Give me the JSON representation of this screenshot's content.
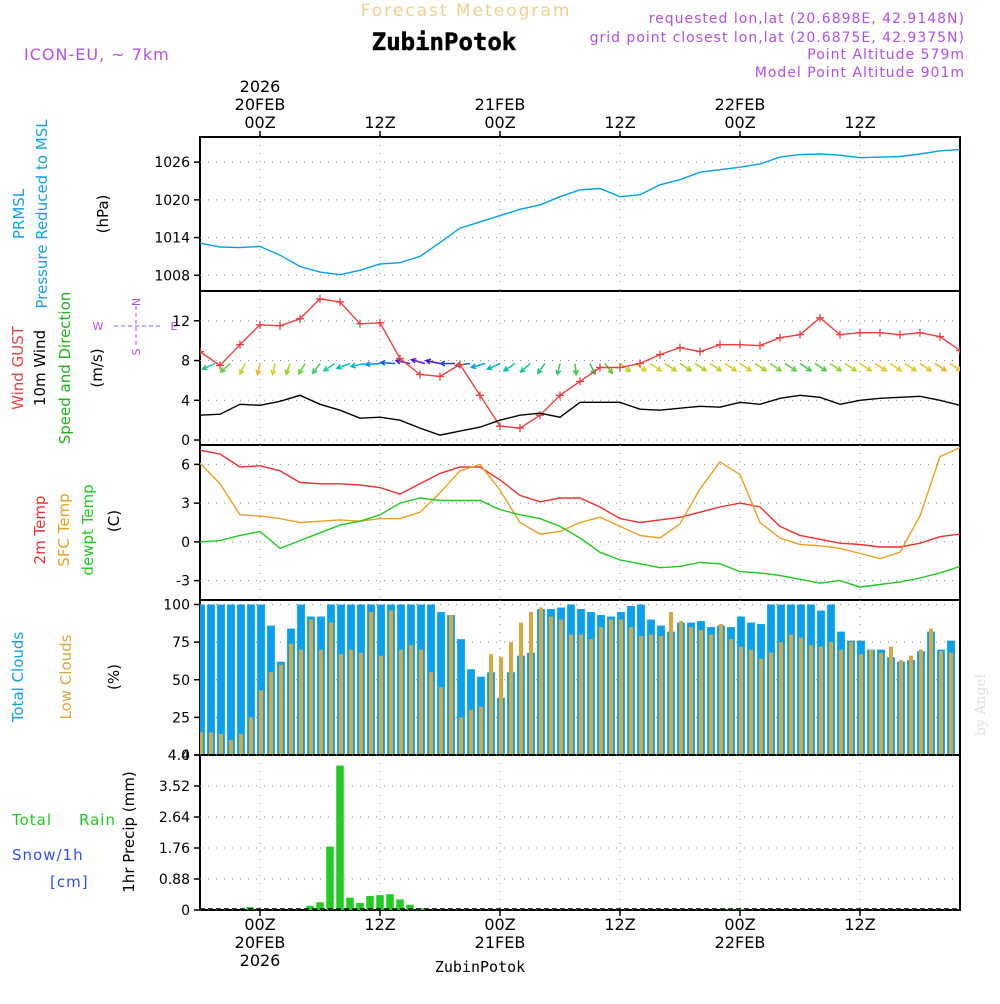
{
  "header": {
    "forecast_title": "Forecast Meteogram",
    "location": "ZubinPotok",
    "model": "ICON-EU, ~ 7km",
    "requested": "requested lon,lat (20.6898E, 42.9148N)",
    "closest": "grid point closest lon,lat (20.6875E, 42.9375N)",
    "point_alt": "Point Altitude 579m",
    "model_alt": "Model Point Altitude 901m"
  },
  "time_axis": {
    "top_labels": [
      {
        "t": 6,
        "lines": [
          "2026",
          "20FEB",
          "00Z"
        ]
      },
      {
        "t": 18,
        "lines": [
          "12Z"
        ]
      },
      {
        "t": 30,
        "lines": [
          "21FEB",
          "00Z"
        ]
      },
      {
        "t": 42,
        "lines": [
          "12Z"
        ]
      },
      {
        "t": 54,
        "lines": [
          "22FEB",
          "00Z"
        ]
      },
      {
        "t": 66,
        "lines": [
          "12Z"
        ]
      }
    ],
    "bottom_labels": [
      {
        "t": 6,
        "lines": [
          "00Z",
          "20FEB",
          "2026"
        ]
      },
      {
        "t": 18,
        "lines": [
          "12Z"
        ]
      },
      {
        "t": 30,
        "lines": [
          "00Z",
          "21FEB"
        ]
      },
      {
        "t": 42,
        "lines": [
          "12Z"
        ]
      },
      {
        "t": 54,
        "lines": [
          "00Z",
          "22FEB"
        ]
      },
      {
        "t": 66,
        "lines": [
          "12Z"
        ]
      }
    ],
    "footer_location": "ZubinPotok",
    "credit": "by Angel"
  },
  "chart_data": [
    {
      "type": "line",
      "panel": "pressure",
      "labels": [
        "PRMSL",
        "Pressure Reduced to MSL"
      ],
      "unit": "(hPa)",
      "ylim": [
        1005.5,
        1030
      ],
      "yticks": [
        1008,
        1014,
        1020,
        1026
      ],
      "x": [
        0,
        2,
        4,
        6,
        8,
        10,
        12,
        14,
        16,
        18,
        20,
        22,
        24,
        26,
        28,
        30,
        32,
        34,
        36,
        38,
        40,
        42,
        44,
        46,
        48,
        50,
        52,
        54,
        56,
        58,
        60,
        62,
        64,
        66,
        68,
        70,
        72,
        74,
        76
      ],
      "series": [
        {
          "name": "PRMSL",
          "color": "#00a0e6",
          "values": [
            1013.1,
            1012.5,
            1012.4,
            1012.6,
            1011.2,
            1009.4,
            1008.5,
            1008.1,
            1008.8,
            1009.8,
            1010.0,
            1011.0,
            1013.2,
            1015.5,
            1016.5,
            1017.5,
            1018.5,
            1019.2,
            1020.5,
            1021.6,
            1021.8,
            1020.5,
            1020.8,
            1022.4,
            1023.2,
            1024.4,
            1024.8,
            1025.2,
            1025.7,
            1026.8,
            1027.2,
            1027.3,
            1027.1,
            1026.7,
            1026.8,
            1026.9,
            1027.3,
            1027.8,
            1028.0
          ]
        }
      ]
    },
    {
      "type": "line",
      "panel": "wind",
      "labels": [
        "Wind GUST",
        "10m Wind",
        "Speed and Direction"
      ],
      "unit": "(m/s)",
      "compass": [
        "N",
        "W",
        "E",
        "S"
      ],
      "ylim": [
        -0.5,
        15
      ],
      "yticks": [
        0,
        4,
        8,
        12
      ],
      "x": [
        0,
        2,
        4,
        6,
        8,
        10,
        12,
        14,
        16,
        18,
        20,
        22,
        24,
        26,
        28,
        30,
        32,
        34,
        36,
        38,
        40,
        42,
        44,
        46,
        48,
        50,
        52,
        54,
        56,
        58,
        60,
        62,
        64,
        66,
        68,
        70,
        72,
        74,
        76
      ],
      "series": [
        {
          "name": "Wind GUST",
          "color": "#e84040",
          "marker": "+",
          "values": [
            8.9,
            7.5,
            9.6,
            11.6,
            11.5,
            12.2,
            14.2,
            13.9,
            11.7,
            11.8,
            8.2,
            6.6,
            6.4,
            7.6,
            4.5,
            1.4,
            1.2,
            2.5,
            4.5,
            5.9,
            7.3,
            7.3,
            7.7,
            8.6,
            9.3,
            8.9,
            9.6,
            9.6,
            9.5,
            10.3,
            10.6,
            12.3,
            10.6,
            10.8,
            10.8,
            10.6,
            10.8,
            10.4,
            9.0
          ]
        },
        {
          "name": "10m Wind",
          "color": "#000000",
          "values": [
            2.5,
            2.6,
            3.6,
            3.5,
            3.9,
            4.5,
            3.6,
            3.0,
            2.2,
            2.3,
            2.0,
            1.2,
            0.5,
            0.9,
            1.3,
            2.0,
            2.5,
            2.7,
            2.3,
            3.8,
            3.8,
            3.8,
            3.1,
            3.0,
            3.2,
            3.4,
            3.3,
            3.8,
            3.6,
            4.2,
            4.5,
            4.3,
            3.6,
            4.0,
            4.2,
            4.3,
            4.4,
            4.0,
            3.5
          ]
        }
      ],
      "direction_arrows": [
        {
          "t": 0,
          "angle": 150,
          "color": "#00c8a0"
        },
        {
          "t": 1.5,
          "angle": 150,
          "color": "#20c880"
        },
        {
          "t": 3,
          "angle": 130,
          "color": "#60d040"
        },
        {
          "t": 4.5,
          "angle": 110,
          "color": "#c8d020"
        },
        {
          "t": 6,
          "angle": 100,
          "color": "#f0b020"
        },
        {
          "t": 7.5,
          "angle": 100,
          "color": "#d0d020"
        },
        {
          "t": 9,
          "angle": 105,
          "color": "#a0d020"
        },
        {
          "t": 10.5,
          "angle": 115,
          "color": "#70d040"
        },
        {
          "t": 12,
          "angle": 120,
          "color": "#40c860"
        },
        {
          "t": 13.5,
          "angle": 140,
          "color": "#20c8a0"
        },
        {
          "t": 15,
          "angle": 155,
          "color": "#00c0c8"
        },
        {
          "t": 16.5,
          "angle": 165,
          "color": "#00b8e0"
        },
        {
          "t": 18,
          "angle": 175,
          "color": "#0090e8"
        },
        {
          "t": 19.5,
          "angle": 185,
          "color": "#0060e0"
        },
        {
          "t": 21,
          "angle": 195,
          "color": "#3030e0"
        },
        {
          "t": 22.5,
          "angle": 200,
          "color": "#6010d0"
        },
        {
          "t": 24,
          "angle": 195,
          "color": "#4010c8"
        },
        {
          "t": 25.5,
          "angle": 180,
          "color": "#2040d8"
        },
        {
          "t": 27,
          "angle": 170,
          "color": "#0070e0"
        },
        {
          "t": 28.5,
          "angle": 160,
          "color": "#00a0e0"
        },
        {
          "t": 30,
          "angle": 150,
          "color": "#00b8c8"
        },
        {
          "t": 31.5,
          "angle": 140,
          "color": "#00c0b0"
        },
        {
          "t": 33,
          "angle": 130,
          "color": "#10c890"
        },
        {
          "t": 34.5,
          "angle": 120,
          "color": "#20c870"
        },
        {
          "t": 36,
          "angle": 100,
          "color": "#30c860"
        },
        {
          "t": 37.5,
          "angle": 85,
          "color": "#40c840"
        },
        {
          "t": 39,
          "angle": 70,
          "color": "#30c040"
        },
        {
          "t": 40.5,
          "angle": 60,
          "color": "#60c830"
        },
        {
          "t": 42,
          "angle": 45,
          "color": "#c0d020"
        },
        {
          "t": 43.5,
          "angle": 40,
          "color": "#e0d020"
        },
        {
          "t": 45,
          "angle": 40,
          "color": "#d8d020"
        },
        {
          "t": 46.5,
          "angle": 40,
          "color": "#c0d020"
        },
        {
          "t": 48,
          "angle": 40,
          "color": "#a0d020"
        },
        {
          "t": 49.5,
          "angle": 40,
          "color": "#b0d020"
        },
        {
          "t": 51,
          "angle": 40,
          "color": "#c8d020"
        },
        {
          "t": 52.5,
          "angle": 40,
          "color": "#e0c820"
        },
        {
          "t": 54,
          "angle": 40,
          "color": "#d0d020"
        },
        {
          "t": 55.5,
          "angle": 40,
          "color": "#a8d020"
        },
        {
          "t": 57,
          "angle": 40,
          "color": "#80d030"
        },
        {
          "t": 58.5,
          "angle": 40,
          "color": "#60c840"
        },
        {
          "t": 60,
          "angle": 40,
          "color": "#40c850"
        },
        {
          "t": 61.5,
          "angle": 40,
          "color": "#50c840"
        },
        {
          "t": 63,
          "angle": 40,
          "color": "#90d030"
        },
        {
          "t": 64.5,
          "angle": 40,
          "color": "#c0d020"
        },
        {
          "t": 66,
          "angle": 40,
          "color": "#e0d020"
        },
        {
          "t": 67.5,
          "angle": 40,
          "color": "#f0c020"
        },
        {
          "t": 69,
          "angle": 40,
          "color": "#e0d020"
        },
        {
          "t": 70.5,
          "angle": 40,
          "color": "#d0d020"
        },
        {
          "t": 72,
          "angle": 40,
          "color": "#e8c020"
        },
        {
          "t": 73.5,
          "angle": 40,
          "color": "#f0b020"
        },
        {
          "t": 75,
          "angle": 40,
          "color": "#f0c020"
        }
      ]
    },
    {
      "type": "line",
      "panel": "temperature",
      "labels": [
        "2m Temp",
        "SFC Temp",
        "dewpt Temp"
      ],
      "unit": "(C)",
      "ylim": [
        -4.5,
        7.5
      ],
      "yticks": [
        -3,
        0,
        3,
        6
      ],
      "x": [
        0,
        2,
        4,
        6,
        8,
        10,
        12,
        14,
        16,
        18,
        20,
        22,
        24,
        26,
        28,
        30,
        32,
        34,
        36,
        38,
        40,
        42,
        44,
        46,
        48,
        50,
        52,
        54,
        56,
        58,
        60,
        62,
        64,
        66,
        68,
        70,
        72,
        74,
        76
      ],
      "series": [
        {
          "name": "2m Temp",
          "color": "#e83030",
          "values": [
            7.1,
            6.8,
            5.8,
            5.9,
            5.5,
            4.6,
            4.5,
            4.5,
            4.4,
            4.2,
            3.7,
            4.5,
            5.3,
            5.8,
            5.8,
            4.8,
            3.6,
            3.1,
            3.4,
            3.4,
            2.7,
            1.8,
            1.5,
            1.7,
            1.9,
            2.3,
            2.7,
            3.0,
            2.7,
            1.2,
            0.5,
            0.2,
            -0.1,
            -0.2,
            -0.4,
            -0.4,
            -0.1,
            0.4,
            0.6
          ]
        },
        {
          "name": "SFC Temp",
          "color": "#e8a020",
          "values": [
            6.1,
            4.5,
            2.1,
            2.0,
            1.8,
            1.5,
            1.6,
            1.7,
            1.6,
            1.8,
            1.8,
            2.3,
            3.8,
            5.5,
            6.0,
            4.0,
            1.5,
            0.6,
            0.8,
            1.5,
            1.9,
            1.2,
            0.5,
            0.3,
            1.4,
            4.1,
            6.2,
            5.2,
            1.5,
            0.3,
            -0.2,
            -0.3,
            -0.5,
            -0.9,
            -1.3,
            -0.8,
            2.0,
            6.6,
            7.3
          ]
        },
        {
          "name": "dewpt Temp",
          "color": "#20c820",
          "values": [
            0.0,
            0.1,
            0.5,
            0.8,
            -0.5,
            0.1,
            0.7,
            1.3,
            1.6,
            2.1,
            3.0,
            3.4,
            3.2,
            3.2,
            3.2,
            2.5,
            2.1,
            1.8,
            1.2,
            0.3,
            -0.8,
            -1.4,
            -1.7,
            -2.0,
            -1.9,
            -1.6,
            -1.7,
            -2.3,
            -2.4,
            -2.6,
            -2.9,
            -3.2,
            -3.0,
            -3.5,
            -3.3,
            -3.1,
            -2.8,
            -2.4,
            -1.9
          ]
        }
      ]
    },
    {
      "type": "bar",
      "panel": "clouds",
      "labels": [
        "Total Clouds",
        "Low Clouds"
      ],
      "unit": "(%)",
      "ylim": [
        0,
        103
      ],
      "yticks": [
        0,
        25,
        50,
        75,
        100
      ],
      "x": [
        0,
        1,
        2,
        3,
        4,
        5,
        6,
        7,
        8,
        9,
        10,
        11,
        12,
        13,
        14,
        15,
        16,
        17,
        18,
        19,
        20,
        21,
        22,
        23,
        24,
        25,
        26,
        27,
        28,
        29,
        30,
        31,
        32,
        33,
        34,
        35,
        36,
        37,
        38,
        39,
        40,
        41,
        42,
        43,
        44,
        45,
        46,
        47,
        48,
        49,
        50,
        51,
        52,
        53,
        54,
        55,
        56,
        57,
        58,
        59,
        60,
        61,
        62,
        63,
        64,
        65,
        66,
        67,
        68,
        69,
        70,
        71,
        72,
        73,
        74,
        75
      ],
      "series": [
        {
          "name": "Total Clouds",
          "color": "#0aa0f0",
          "values": [
            100,
            100,
            100,
            100,
            100,
            100,
            100,
            86,
            62,
            84,
            100,
            92,
            92,
            100,
            100,
            100,
            100,
            100,
            100,
            100,
            100,
            100,
            100,
            100,
            95,
            93,
            77,
            57,
            52,
            55,
            38,
            55,
            66,
            68,
            97,
            97,
            98,
            100,
            97,
            95,
            93,
            92,
            95,
            99,
            100,
            90,
            86,
            82,
            88,
            88,
            89,
            85,
            86,
            85,
            92,
            88,
            87,
            100,
            100,
            100,
            100,
            100,
            96,
            100,
            82,
            76,
            76,
            70,
            70,
            65,
            62,
            63,
            69,
            82,
            70,
            76
          ]
        },
        {
          "name": "Low Clouds",
          "color": "#d8a840",
          "values": [
            15,
            15,
            14,
            10,
            14,
            25,
            43,
            55,
            60,
            74,
            70,
            90,
            70,
            88,
            67,
            70,
            68,
            95,
            66,
            96,
            70,
            73,
            70,
            55,
            45,
            93,
            25,
            30,
            32,
            67,
            65,
            75,
            88,
            95,
            98,
            92,
            90,
            80,
            80,
            77,
            85,
            90,
            90,
            85,
            79,
            80,
            79,
            95,
            89,
            85,
            83,
            80,
            87,
            77,
            72,
            70,
            64,
            68,
            75,
            80,
            78,
            73,
            72,
            75,
            70,
            75,
            67,
            70,
            68,
            72,
            63,
            66,
            70,
            84,
            69,
            68
          ]
        }
      ]
    },
    {
      "type": "bar",
      "panel": "precip",
      "labels": [
        "Total",
        "Rain",
        "Snow/1h",
        "[cm]"
      ],
      "unit": "1hr Precip (mm)",
      "ylim": [
        0,
        4.4
      ],
      "yticks": [
        0,
        0.88,
        1.76,
        2.64,
        3.52,
        4.4
      ],
      "ytick_labels": [
        "0",
        "0.88",
        "1.76",
        "2.64",
        "3.52",
        "4.4"
      ],
      "x": [
        5,
        11,
        12,
        13,
        14,
        15,
        16,
        17,
        18,
        19,
        20,
        21,
        22,
        53,
        54
      ],
      "series": [
        {
          "name": "Total Rain",
          "color": "#22cc22",
          "values": [
            0.08,
            0.12,
            0.22,
            1.8,
            4.1,
            0.35,
            0.2,
            0.4,
            0.42,
            0.45,
            0.3,
            0.15,
            0.05,
            0.03,
            0.03
          ]
        }
      ]
    }
  ]
}
